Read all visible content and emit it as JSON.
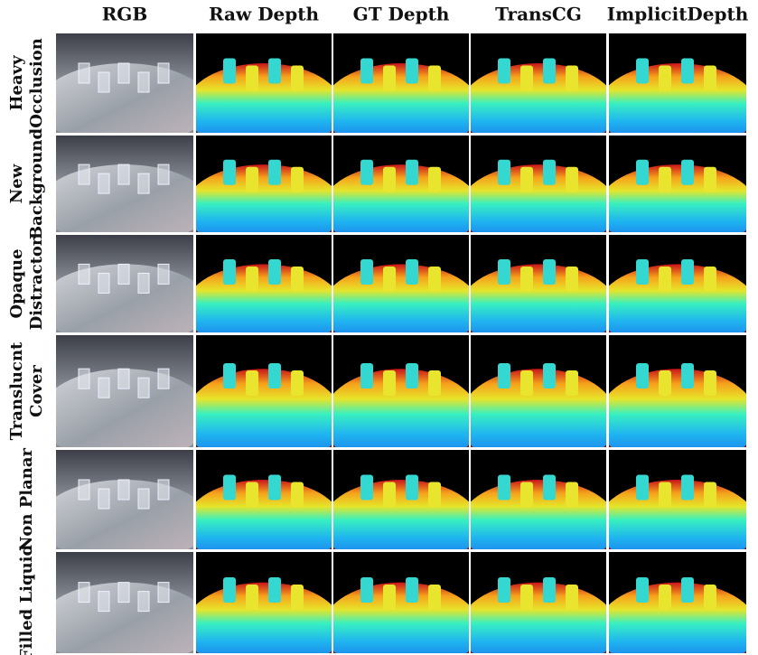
{
  "header": {
    "columns": [
      "RGB",
      "Raw Depth",
      "GT Depth",
      "TransCG",
      "ImplicitDepth"
    ]
  },
  "rows": [
    {
      "label": [
        "Heavy",
        "Occlusion"
      ]
    },
    {
      "label": [
        "New",
        "Background"
      ]
    },
    {
      "label": [
        "Opaque",
        "Distractor"
      ]
    },
    {
      "label": [
        "Translucnt",
        "Cover"
      ]
    },
    {
      "label": [
        "Non Planar"
      ]
    },
    {
      "label": [
        "Filled Liquid"
      ]
    }
  ]
}
